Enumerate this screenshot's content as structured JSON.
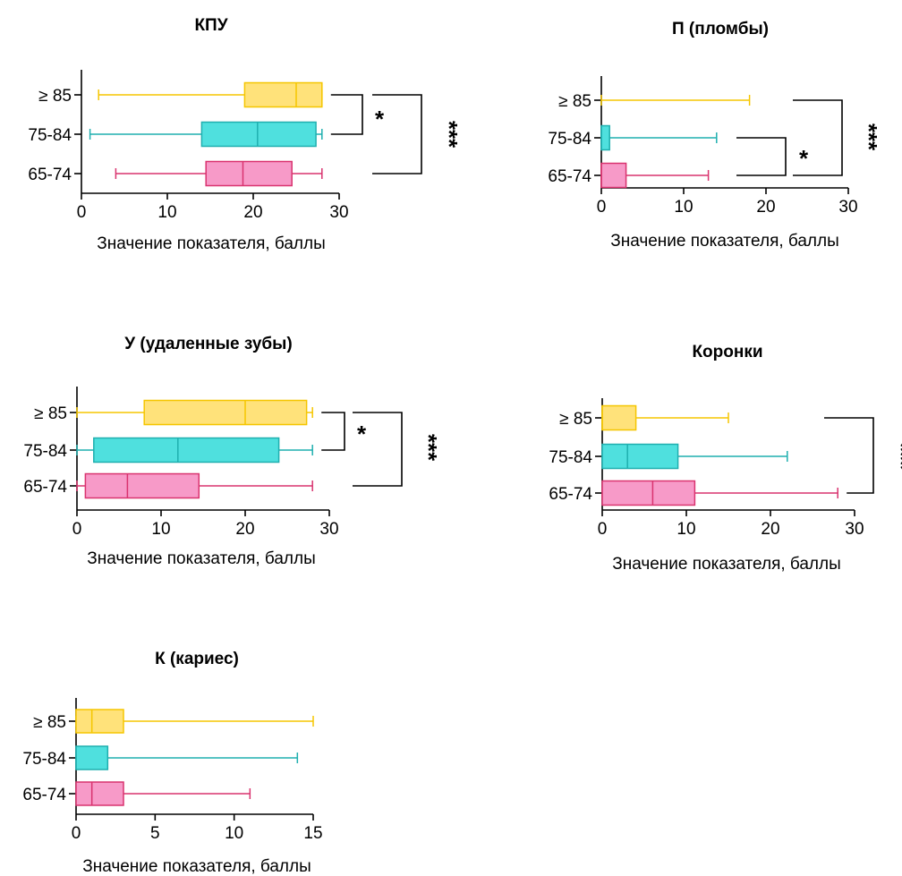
{
  "chart_data": [
    {
      "type": "box",
      "title": "КПУ",
      "xlabel": "Значение показателя, баллы",
      "xlim": [
        0,
        30
      ],
      "xticks": [
        "0",
        "10",
        "20",
        "30"
      ],
      "categories": [
        "≥ 85",
        "75-84",
        "65-74"
      ],
      "series": [
        {
          "category": "≥ 85",
          "color": "#FFE27A",
          "edge": "#F5C600",
          "min": 2,
          "q1": 19,
          "median": 25,
          "q3": 28,
          "max": 28
        },
        {
          "category": "75-84",
          "color": "#4FE0DE",
          "edge": "#1FAFAF",
          "min": 1,
          "q1": 14,
          "median": 20.5,
          "q3": 27.3,
          "max": 28
        },
        {
          "category": "65-74",
          "color": "#F79AC8",
          "edge": "#D9336F",
          "min": 4,
          "q1": 14.5,
          "median": 18.8,
          "q3": 24.5,
          "max": 28
        }
      ],
      "significance": [
        {
          "between": [
            "≥ 85",
            "75-84"
          ],
          "label": "*"
        },
        {
          "between": [
            "≥ 85",
            "65-74"
          ],
          "label": "***"
        }
      ]
    },
    {
      "type": "box",
      "title": "П (пломбы)",
      "xlabel": "Значение показателя, баллы",
      "xlim": [
        0,
        30
      ],
      "xticks": [
        "0",
        "10",
        "20",
        "30"
      ],
      "categories": [
        "≥ 85",
        "75-84",
        "65-74"
      ],
      "series": [
        {
          "category": "≥ 85",
          "color": "#FFE27A",
          "edge": "#F5C600",
          "min": 0,
          "q1": 0,
          "median": 0,
          "q3": 0,
          "max": 18
        },
        {
          "category": "75-84",
          "color": "#4FE0DE",
          "edge": "#1FAFAF",
          "min": 0,
          "q1": 0,
          "median": 0,
          "q3": 1,
          "max": 14
        },
        {
          "category": "65-74",
          "color": "#F79AC8",
          "edge": "#D9336F",
          "min": 0,
          "q1": 0,
          "median": 0,
          "q3": 3,
          "max": 13
        }
      ],
      "significance": [
        {
          "between": [
            "75-84",
            "65-74"
          ],
          "label": "*"
        },
        {
          "between": [
            "≥ 85",
            "65-74"
          ],
          "label": "***"
        }
      ]
    },
    {
      "type": "box",
      "title": "У (удаленные зубы)",
      "xlabel": "Значение показателя, баллы",
      "xlim": [
        0,
        30
      ],
      "xticks": [
        "0",
        "10",
        "20",
        "30"
      ],
      "categories": [
        "≥ 85",
        "75-84",
        "65-74"
      ],
      "series": [
        {
          "category": "≥ 85",
          "color": "#FFE27A",
          "edge": "#F5C600",
          "min": 0,
          "q1": 8,
          "median": 20,
          "q3": 27.3,
          "max": 28
        },
        {
          "category": "75-84",
          "color": "#4FE0DE",
          "edge": "#1FAFAF",
          "min": 0,
          "q1": 2,
          "median": 12,
          "q3": 24,
          "max": 28
        },
        {
          "category": "65-74",
          "color": "#F79AC8",
          "edge": "#D9336F",
          "min": 0,
          "q1": 1,
          "median": 6,
          "q3": 14.5,
          "max": 28
        }
      ],
      "significance": [
        {
          "between": [
            "≥ 85",
            "75-84"
          ],
          "label": "*"
        },
        {
          "between": [
            "≥ 85",
            "65-74"
          ],
          "label": "***"
        }
      ]
    },
    {
      "type": "box",
      "title": "Коронки",
      "xlabel": "Значение показателя, баллы",
      "xlim": [
        0,
        30
      ],
      "xticks": [
        "0",
        "10",
        "20",
        "30"
      ],
      "categories": [
        "≥ 85",
        "75-84",
        "65-74"
      ],
      "series": [
        {
          "category": "≥ 85",
          "color": "#FFE27A",
          "edge": "#F5C600",
          "min": 0,
          "q1": 0,
          "median": 0,
          "q3": 4,
          "max": 15
        },
        {
          "category": "75-84",
          "color": "#4FE0DE",
          "edge": "#1FAFAF",
          "min": 0,
          "q1": 0,
          "median": 3,
          "q3": 9,
          "max": 22
        },
        {
          "category": "65-74",
          "color": "#F79AC8",
          "edge": "#D9336F",
          "min": 0,
          "q1": 0,
          "median": 6,
          "q3": 11,
          "max": 28
        }
      ],
      "significance": [
        {
          "between": [
            "≥ 85",
            "65-74"
          ],
          "label": "***"
        }
      ]
    },
    {
      "type": "box",
      "title": "К (кариес)",
      "xlabel": "Значение показателя, баллы",
      "xlim": [
        0,
        15
      ],
      "xticks": [
        "0",
        "5",
        "10",
        "15"
      ],
      "categories": [
        "≥ 85",
        "75-84",
        "65-74"
      ],
      "series": [
        {
          "category": "≥ 85",
          "color": "#FFE27A",
          "edge": "#F5C600",
          "min": 0,
          "q1": 0,
          "median": 1,
          "q3": 3,
          "max": 15
        },
        {
          "category": "75-84",
          "color": "#4FE0DE",
          "edge": "#1FAFAF",
          "min": 0,
          "q1": 0,
          "median": 0,
          "q3": 2,
          "max": 14
        },
        {
          "category": "65-74",
          "color": "#F79AC8",
          "edge": "#D9336F",
          "min": 0,
          "q1": 0,
          "median": 1,
          "q3": 3,
          "max": 11
        }
      ],
      "significance": []
    }
  ]
}
